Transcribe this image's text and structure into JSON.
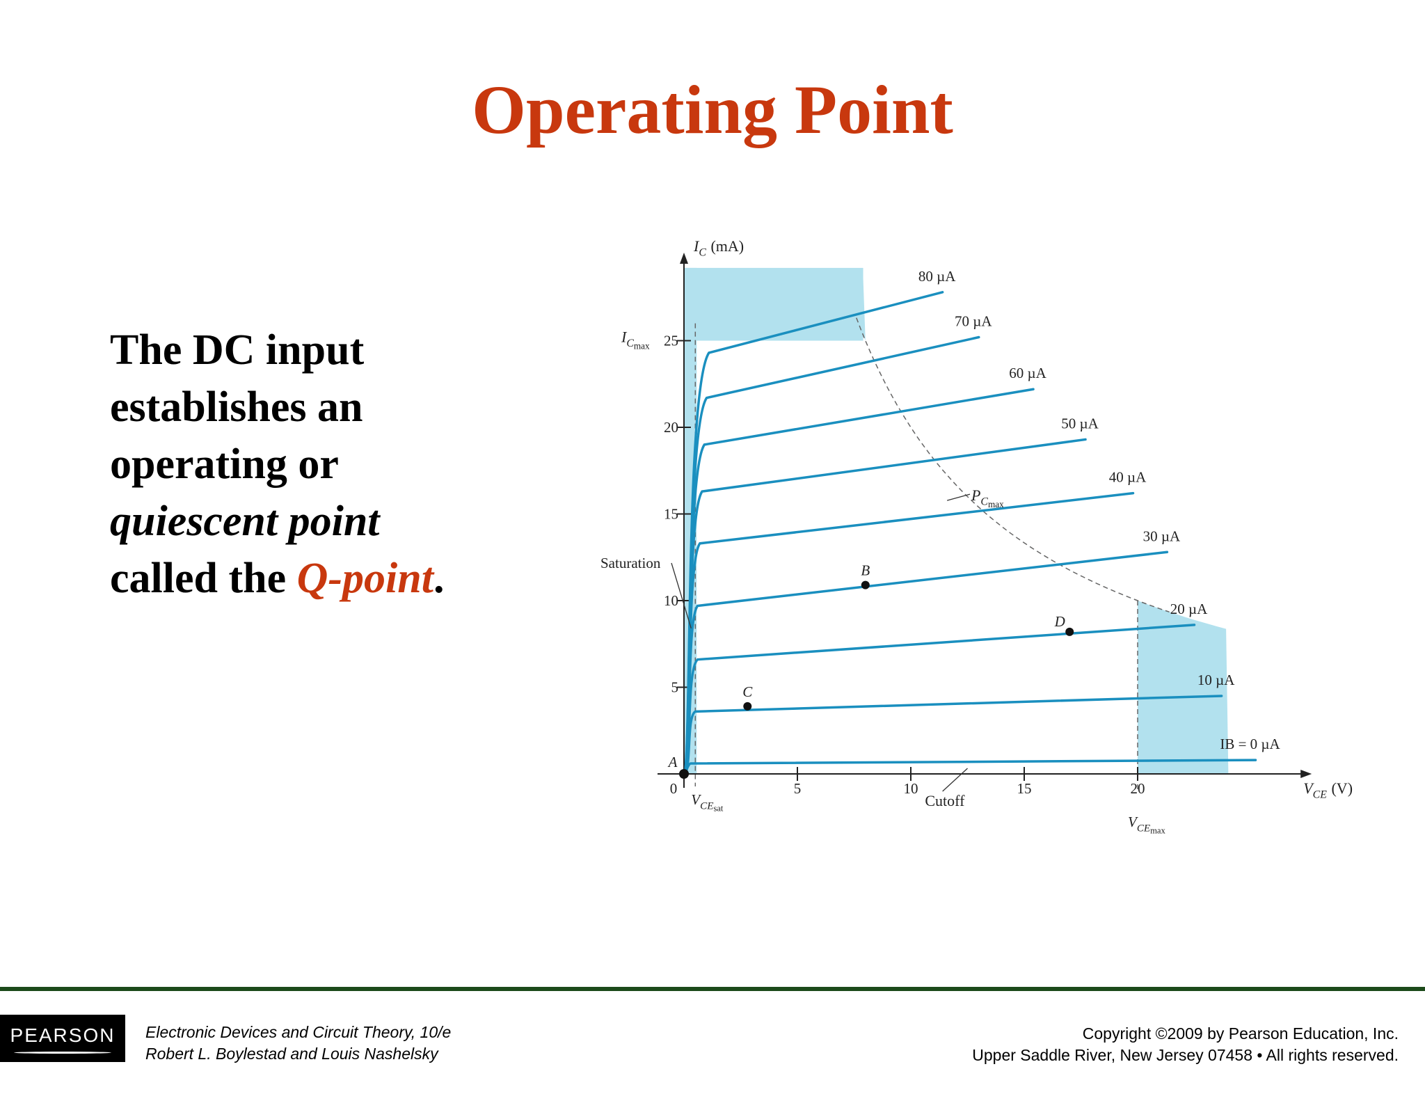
{
  "slide": {
    "title": "Operating Point",
    "body": {
      "line1": "The DC input",
      "line2": "establishes an",
      "line3": "operating or",
      "line4": "quiescent point",
      "line5_prefix": "called the ",
      "line5_accent": "Q-point",
      "line5_suffix": "."
    }
  },
  "footer": {
    "logo": "PEARSON",
    "book_title": "Electronic Devices and Circuit Theory, 10/e",
    "authors": "Robert L. Boylestad and Louis Nashelsky",
    "copyright_line1": "Copyright ©2009 by Pearson Education, Inc.",
    "copyright_line2": "Upper Saddle River, New Jersey 07458 • All rights reserved."
  },
  "colors": {
    "title": "#c8380e",
    "curve": "#1a8fbf",
    "region": "#b2e1ee",
    "footer_rule": "#1c4a1a"
  },
  "chart_data": {
    "type": "line",
    "title": "",
    "xlabel": "VCE (V)",
    "ylabel": "IC (mA)",
    "xlim": [
      0,
      27
    ],
    "ylim": [
      0,
      30
    ],
    "x_ticks": [
      0,
      5,
      10,
      15,
      20
    ],
    "y_ticks": [
      5,
      10,
      15,
      20,
      25
    ],
    "y_tick_labels": [
      "5",
      "10",
      "15",
      "20",
      "25"
    ],
    "x_tick_labels": [
      "0",
      "5",
      "10",
      "15",
      "20"
    ],
    "series": [
      {
        "name": "IB = 0 µA",
        "label": "IB = 0 µA",
        "x": [
          0.3,
          25.2
        ],
        "y": [
          0.6,
          0.8
        ]
      },
      {
        "name": "10 µA",
        "label": "10 µA",
        "x": [
          0.5,
          23.7
        ],
        "y": [
          3.6,
          4.5
        ]
      },
      {
        "name": "20 µA",
        "label": "20 µA",
        "x": [
          0.6,
          22.5
        ],
        "y": [
          6.6,
          8.6
        ]
      },
      {
        "name": "30 µA",
        "label": "30 µA",
        "x": [
          0.6,
          21.3
        ],
        "y": [
          9.7,
          12.8
        ]
      },
      {
        "name": "40 µA",
        "label": "40 µA",
        "x": [
          0.7,
          19.8
        ],
        "y": [
          13.3,
          16.2
        ]
      },
      {
        "name": "50 µA",
        "label": "50 µA",
        "x": [
          0.8,
          17.7
        ],
        "y": [
          16.3,
          19.3
        ]
      },
      {
        "name": "60 µA",
        "label": "60 µA",
        "x": [
          0.9,
          15.4
        ],
        "y": [
          19.0,
          22.2
        ]
      },
      {
        "name": "70 µA",
        "label": "70 µA",
        "x": [
          1.0,
          13.0
        ],
        "y": [
          21.7,
          25.2
        ]
      },
      {
        "name": "80 µA",
        "label": "80 µA",
        "x": [
          1.1,
          11.4
        ],
        "y": [
          24.3,
          27.8
        ]
      }
    ],
    "operating_points": [
      {
        "label": "A",
        "x": 0,
        "y": 0
      },
      {
        "label": "B",
        "x": 8,
        "y": 10.9
      },
      {
        "label": "C",
        "x": 2.8,
        "y": 3.9
      },
      {
        "label": "D",
        "x": 17,
        "y": 8.2
      }
    ],
    "limits": {
      "IC_max": 25,
      "VCE_max": 20,
      "VCE_sat": 0.5,
      "PC_max_mW": 200
    },
    "labels": {
      "saturation": "Saturation",
      "cutoff": "Cutoff",
      "ic_max_main": "I",
      "ic_max_sub1": "C",
      "ic_max_sub2": "max",
      "pc_max_main": "P",
      "pc_max_sub1": "C",
      "pc_max_sub2": "max",
      "vce_sat_main": "V",
      "vce_sat_sub1": "CE",
      "vce_sat_sub2": "sat",
      "vce_max_main": "V",
      "vce_max_sub1": "CE",
      "vce_max_sub2": "max",
      "x_axis_main": "V",
      "x_axis_sub": "CE",
      "x_axis_unit": "(V)",
      "y_axis_main": "I",
      "y_axis_sub": "C",
      "y_axis_unit": "(mA)"
    },
    "grid": false,
    "legend": "none"
  }
}
